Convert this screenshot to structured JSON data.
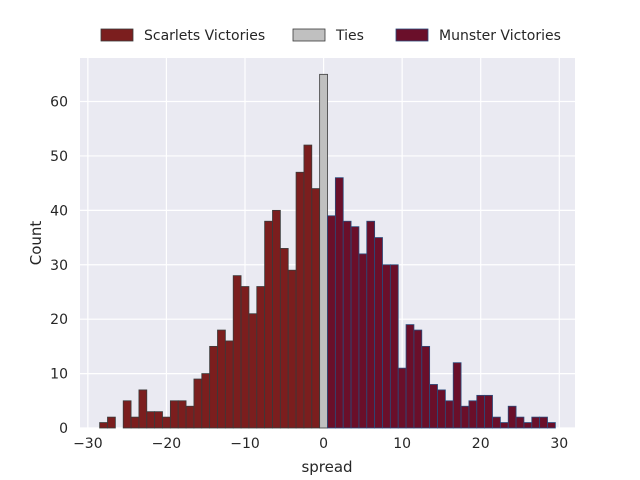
{
  "chart_data": {
    "type": "bar",
    "title": "",
    "xlabel": "spread",
    "ylabel": "Count",
    "xlim": [
      -31,
      32
    ],
    "ylim": [
      0,
      68
    ],
    "x_ticks": [
      -30,
      -20,
      -10,
      0,
      10,
      20,
      30
    ],
    "x_tick_labels": [
      "−30",
      "−20",
      "−10",
      "0",
      "10",
      "20",
      "30"
    ],
    "y_ticks": [
      0,
      10,
      20,
      30,
      40,
      50,
      60
    ],
    "y_tick_labels": [
      "0",
      "10",
      "20",
      "30",
      "40",
      "50",
      "60"
    ],
    "grid": true,
    "legend_position": "top-center, above plot",
    "background_color": "#eaeaf2",
    "series": [
      {
        "name": "Scarlets Victories",
        "color": "#7b1e1e",
        "edge_color": "#3a3a3a",
        "x": [
          -28,
          -27,
          -26,
          -25,
          -24,
          -23,
          -22,
          -21,
          -20,
          -19,
          -18,
          -17,
          -16,
          -15,
          -14,
          -13,
          -12,
          -11,
          -10,
          -9,
          -8,
          -7,
          -6,
          -5,
          -4,
          -3,
          -2,
          -1
        ],
        "values": [
          1,
          2,
          0,
          5,
          2,
          7,
          3,
          3,
          2,
          5,
          5,
          4,
          9,
          10,
          15,
          18,
          16,
          28,
          26,
          21,
          26,
          38,
          40,
          33,
          29,
          47,
          52,
          44
        ]
      },
      {
        "name": "Ties",
        "color": "#c0c0c0",
        "edge_color": "#3a3a3a",
        "x": [
          0
        ],
        "values": [
          65
        ]
      },
      {
        "name": "Munster Victories",
        "color": "#6a0f2a",
        "edge_color": "#2a4a7a",
        "x": [
          1,
          2,
          3,
          4,
          5,
          6,
          7,
          8,
          9,
          10,
          11,
          12,
          13,
          14,
          15,
          16,
          17,
          18,
          19,
          20,
          21,
          22,
          23,
          24,
          25,
          26,
          27,
          28,
          29
        ],
        "values": [
          39,
          46,
          38,
          37,
          32,
          38,
          35,
          30,
          30,
          11,
          19,
          18,
          15,
          8,
          7,
          5,
          12,
          4,
          5,
          6,
          6,
          2,
          1,
          4,
          2,
          1,
          2,
          2,
          1
        ]
      }
    ]
  }
}
